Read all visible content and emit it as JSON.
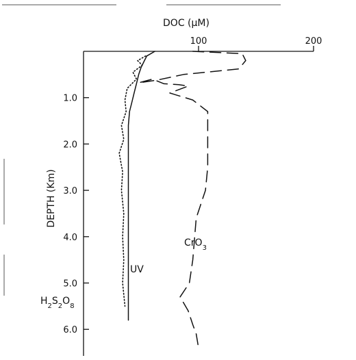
{
  "chart_data": {
    "type": "line",
    "xlabel": "DOC (μM)",
    "ylabel": "DEPTH (Km)",
    "xlim": [
      0,
      200
    ],
    "ylim": [
      0,
      6.5
    ],
    "x_ticks": [
      {
        "value": 100,
        "label": "100"
      },
      {
        "value": 200,
        "label": "200"
      }
    ],
    "y_ticks": [
      {
        "value": 1,
        "label": "1.0"
      },
      {
        "value": 2,
        "label": "2.0"
      },
      {
        "value": 3,
        "label": "3.0"
      },
      {
        "value": 4,
        "label": "4.0"
      },
      {
        "value": 5,
        "label": "5.0"
      },
      {
        "value": 6,
        "label": "6.0"
      }
    ],
    "series": [
      {
        "name": "UV",
        "style": "solid",
        "color": "#111111",
        "points": [
          [
            62,
            0
          ],
          [
            55,
            0.1
          ],
          [
            53,
            0.2
          ],
          [
            50,
            0.35
          ],
          [
            48,
            0.5
          ],
          [
            46,
            0.7
          ],
          [
            44,
            0.9
          ],
          [
            42,
            1.1
          ],
          [
            40,
            1.3
          ],
          [
            39,
            1.6
          ],
          [
            39,
            2.0
          ],
          [
            39,
            3.0
          ],
          [
            39,
            4.0
          ],
          [
            39,
            5.0
          ],
          [
            39,
            5.8
          ]
        ]
      },
      {
        "name": "H2S2O8",
        "style": "dotted",
        "color": "#111111",
        "points": [
          [
            54,
            0.1
          ],
          [
            47,
            0.2
          ],
          [
            51,
            0.3
          ],
          [
            43,
            0.45
          ],
          [
            46,
            0.6
          ],
          [
            38,
            0.8
          ],
          [
            36,
            1.05
          ],
          [
            37,
            1.3
          ],
          [
            33,
            1.6
          ],
          [
            35,
            1.9
          ],
          [
            31,
            2.2
          ],
          [
            34,
            2.6
          ],
          [
            33,
            3.0
          ],
          [
            35,
            3.5
          ],
          [
            34,
            4.0
          ],
          [
            35,
            4.5
          ],
          [
            34,
            5.0
          ],
          [
            36,
            5.5
          ]
        ]
      },
      {
        "name": "CrO3",
        "style": "dashed",
        "color": "#111111",
        "points": [
          [
            95,
            0
          ],
          [
            138,
            0.05
          ],
          [
            141,
            0.2
          ],
          [
            135,
            0.38
          ],
          [
            87,
            0.5
          ],
          [
            64,
            0.62
          ],
          [
            48,
            0.68
          ],
          [
            60,
            0.6
          ],
          [
            70,
            0.7
          ],
          [
            83,
            0.72
          ],
          [
            91,
            0.75
          ],
          [
            75,
            0.9
          ],
          [
            95,
            1.05
          ],
          [
            108,
            1.3
          ],
          [
            108,
            2.0
          ],
          [
            108,
            2.5
          ],
          [
            106,
            3.0
          ],
          [
            98,
            3.6
          ],
          [
            95,
            4.5
          ],
          [
            92,
            5.0
          ],
          [
            84,
            5.3
          ],
          [
            91,
            5.6
          ],
          [
            95,
            5.9
          ],
          [
            98,
            6.1
          ],
          [
            100,
            6.4
          ]
        ]
      }
    ],
    "series_labels": [
      {
        "series": "UV",
        "text": "UV"
      },
      {
        "series": "CrO3",
        "text": "CrO3"
      },
      {
        "series": "H2S2O8",
        "text": "H2S2O8"
      }
    ],
    "grid": false,
    "legend": "none"
  }
}
